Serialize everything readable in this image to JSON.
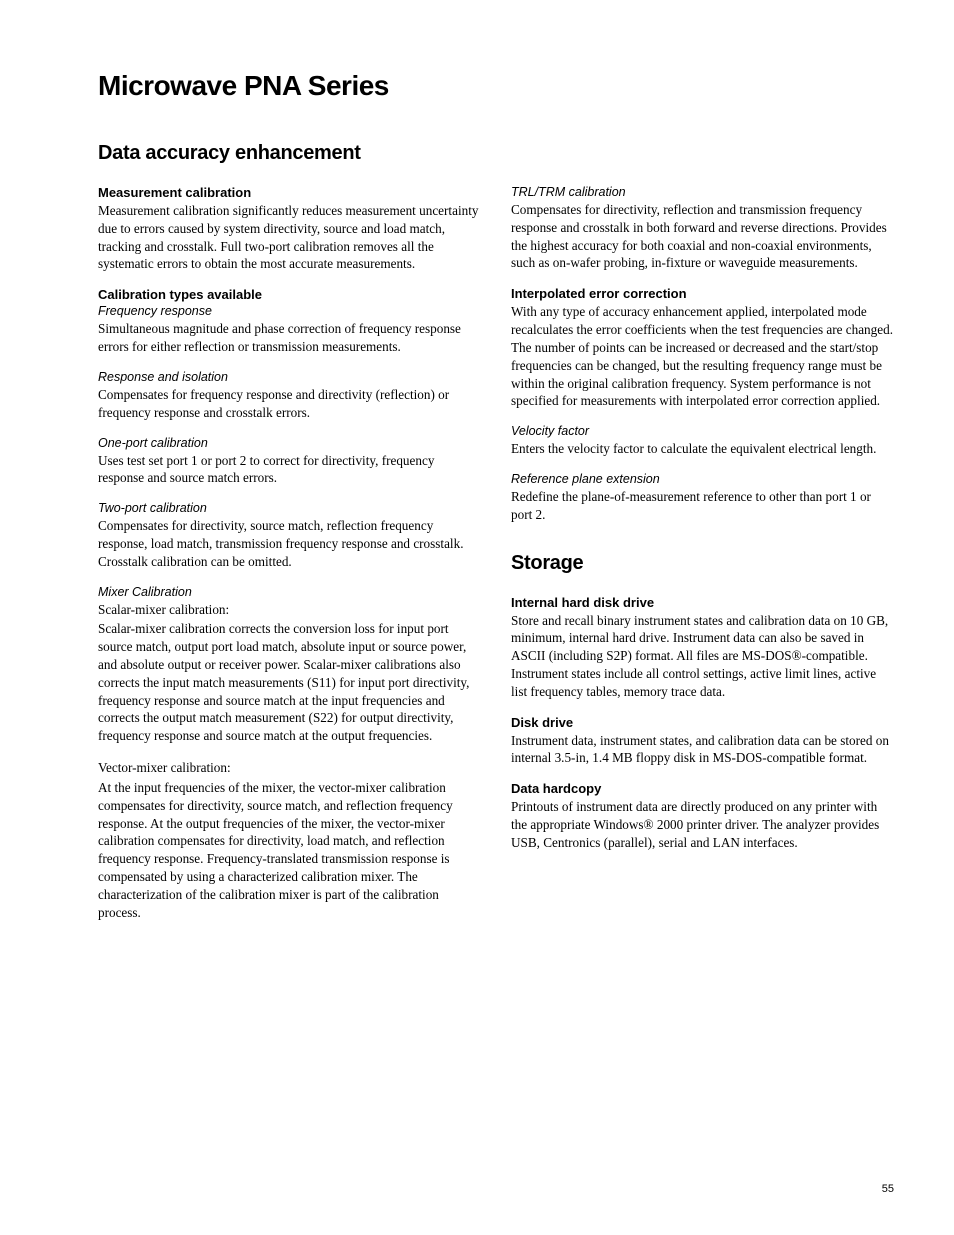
{
  "page_title": "Microwave PNA Series",
  "section1_title": "Data accuracy enhancement",
  "col_left": {
    "measurement_cal_heading": "Measurement calibration",
    "measurement_cal_text": "Measurement calibration significantly reduces measurement uncertainty due to errors caused by system directivity, source and load match, tracking and crosstalk. Full two-port calibration removes all the systematic errors to obtain the most accurate measurements.",
    "cal_types_heading": "Calibration types available",
    "freq_resp_title": "Frequency response",
    "freq_resp_text": "Simultaneous magnitude and phase correction of frequency response errors for either reflection or transmission measurements.",
    "resp_iso_title": "Response and isolation",
    "resp_iso_text": "Compensates for frequency response and directivity (reflection) or frequency response and crosstalk errors.",
    "one_port_title": "One-port calibration",
    "one_port_text": "Uses test set port 1 or port 2 to correct for directivity, frequency response and source match errors.",
    "two_port_title": "Two-port calibration",
    "two_port_text": "Compensates for directivity, source match, reflection frequency response, load match, transmission frequency response and crosstalk. Crosstalk calibration can be omitted.",
    "mixer_title": "Mixer Calibration",
    "scalar_label": "Scalar-mixer calibration:",
    "scalar_text": "Scalar-mixer calibration corrects the conversion loss for input port source match, output port load match, absolute input or source power, and absolute output or receiver power. Scalar-mixer calibrations also corrects the input match measurements (S11) for input port directivity, frequency response and source match at the input frequencies and corrects the output match measurement (S22) for output directivity, frequency response and source match at the output frequencies.",
    "vector_label": "Vector-mixer calibration:",
    "vector_text": "At the input frequencies of the mixer, the vector-mixer calibration compensates for directivity, source match, and reflection frequency response. At the output frequencies of the mixer, the vector-mixer calibration compensates for directivity, load match, and reflection frequency response. Frequency-translated transmission response is compensated by using a characterized calibration mixer. The characterization of the calibration mixer is part of the calibration process."
  },
  "col_right": {
    "trl_title": "TRL/TRM calibration",
    "trl_text": "Compensates for directivity, reflection and transmission frequency response and crosstalk in both forward and reverse directions. Provides the highest accuracy for both coaxial and non-coaxial environments, such as on-wafer probing, in-fixture or waveguide measurements.",
    "interp_heading": "Interpolated error correction",
    "interp_text": "With any type of accuracy enhancement applied, interpolated mode recalculates the error coefficients when the test frequencies are changed. The number of points can be increased or decreased and the start/stop frequencies can be changed, but the resulting frequency range must be within the original calibration frequency. System performance is not specified for measurements with interpolated error correction applied.",
    "velocity_title": "Velocity factor",
    "velocity_text": "Enters the velocity factor to calculate the equivalent electrical length.",
    "refplane_title": "Reference plane extension",
    "refplane_text": "Redefine the plane-of-measurement reference to other than port 1 or port 2.",
    "storage_title": "Storage",
    "hdd_heading": "Internal hard disk drive",
    "hdd_text": "Store and recall binary instrument states and calibration data on 10 GB, minimum, internal hard drive. Instrument data can also be saved in ASCII (including S2P) format. All files are MS-DOS®-compatible. Instrument states include all control settings, active limit lines, active list frequency tables, memory trace data.",
    "disk_heading": "Disk drive",
    "disk_text": "Instrument data, instrument states, and calibration data can be stored on internal 3.5-in, 1.4 MB floppy disk in MS-DOS-compatible format.",
    "hardcopy_heading": "Data hardcopy",
    "hardcopy_text": "Printouts of instrument data are directly produced on any printer with the appropriate Windows® 2000 printer driver. The analyzer provides USB, Centronics (parallel), serial and LAN interfaces."
  },
  "page_number": "55"
}
